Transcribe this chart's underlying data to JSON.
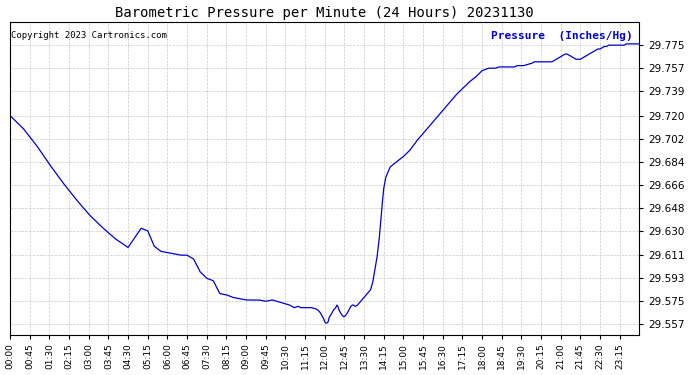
{
  "title": "Barometric Pressure per Minute (24 Hours) 20231130",
  "copyright_text": "Copyright 2023 Cartronics.com",
  "legend_label": "Pressure  (Inches/Hg)",
  "line_color": "#0000cc",
  "bg_color": "#ffffff",
  "grid_color": "#bbbbbb",
  "title_color": "#000000",
  "copyright_color": "#000000",
  "legend_color": "#0000cc",
  "ylim": [
    29.549,
    29.793
  ],
  "yticks": [
    29.557,
    29.575,
    29.593,
    29.611,
    29.63,
    29.648,
    29.666,
    29.684,
    29.702,
    29.72,
    29.739,
    29.757,
    29.775
  ],
  "xtick_labels": [
    "00:00",
    "00:45",
    "01:30",
    "02:15",
    "03:00",
    "03:45",
    "04:30",
    "05:15",
    "06:00",
    "06:45",
    "07:30",
    "08:15",
    "09:00",
    "09:45",
    "10:30",
    "11:15",
    "12:00",
    "12:45",
    "13:30",
    "14:15",
    "15:00",
    "15:45",
    "16:30",
    "17:15",
    "18:00",
    "18:45",
    "19:30",
    "20:15",
    "21:00",
    "21:45",
    "22:30",
    "23:15"
  ],
  "keypoints": [
    [
      0,
      29.72
    ],
    [
      30,
      29.71
    ],
    [
      60,
      29.697
    ],
    [
      90,
      29.682
    ],
    [
      120,
      29.668
    ],
    [
      150,
      29.655
    ],
    [
      180,
      29.643
    ],
    [
      210,
      29.633
    ],
    [
      240,
      29.624
    ],
    [
      270,
      29.617
    ],
    [
      300,
      29.632
    ],
    [
      315,
      29.63
    ],
    [
      330,
      29.618
    ],
    [
      345,
      29.614
    ],
    [
      360,
      29.613
    ],
    [
      390,
      29.611
    ],
    [
      405,
      29.611
    ],
    [
      420,
      29.608
    ],
    [
      435,
      29.598
    ],
    [
      450,
      29.593
    ],
    [
      465,
      29.591
    ],
    [
      480,
      29.581
    ],
    [
      495,
      29.58
    ],
    [
      510,
      29.578
    ],
    [
      525,
      29.577
    ],
    [
      540,
      29.576
    ],
    [
      555,
      29.576
    ],
    [
      570,
      29.576
    ],
    [
      585,
      29.575
    ],
    [
      600,
      29.576
    ],
    [
      610,
      29.575
    ],
    [
      620,
      29.574
    ],
    [
      630,
      29.573
    ],
    [
      640,
      29.572
    ],
    [
      645,
      29.571
    ],
    [
      650,
      29.57
    ],
    [
      660,
      29.571
    ],
    [
      665,
      29.57
    ],
    [
      670,
      29.57
    ],
    [
      680,
      29.57
    ],
    [
      690,
      29.57
    ],
    [
      700,
      29.569
    ],
    [
      705,
      29.568
    ],
    [
      710,
      29.566
    ],
    [
      715,
      29.563
    ],
    [
      718,
      29.561
    ],
    [
      720,
      29.559
    ],
    [
      722,
      29.558
    ],
    [
      725,
      29.558
    ],
    [
      728,
      29.559
    ],
    [
      730,
      29.562
    ],
    [
      735,
      29.565
    ],
    [
      740,
      29.568
    ],
    [
      745,
      29.57
    ],
    [
      748,
      29.572
    ],
    [
      750,
      29.571
    ],
    [
      753,
      29.568
    ],
    [
      756,
      29.566
    ],
    [
      760,
      29.564
    ],
    [
      763,
      29.563
    ],
    [
      765,
      29.563
    ],
    [
      768,
      29.564
    ],
    [
      772,
      29.566
    ],
    [
      775,
      29.568
    ],
    [
      778,
      29.57
    ],
    [
      780,
      29.571
    ],
    [
      783,
      29.572
    ],
    [
      786,
      29.572
    ],
    [
      790,
      29.571
    ],
    [
      795,
      29.572
    ],
    [
      800,
      29.574
    ],
    [
      805,
      29.576
    ],
    [
      810,
      29.578
    ],
    [
      815,
      29.58
    ],
    [
      820,
      29.582
    ],
    [
      825,
      29.584
    ],
    [
      830,
      29.59
    ],
    [
      840,
      29.61
    ],
    [
      845,
      29.625
    ],
    [
      850,
      29.645
    ],
    [
      855,
      29.663
    ],
    [
      860,
      29.672
    ],
    [
      870,
      29.68
    ],
    [
      885,
      29.684
    ],
    [
      900,
      29.688
    ],
    [
      915,
      29.693
    ],
    [
      930,
      29.7
    ],
    [
      945,
      29.706
    ],
    [
      960,
      29.712
    ],
    [
      975,
      29.718
    ],
    [
      990,
      29.724
    ],
    [
      1005,
      29.73
    ],
    [
      1020,
      29.736
    ],
    [
      1035,
      29.741
    ],
    [
      1050,
      29.746
    ],
    [
      1065,
      29.75
    ],
    [
      1080,
      29.755
    ],
    [
      1095,
      29.757
    ],
    [
      1100,
      29.757
    ],
    [
      1110,
      29.757
    ],
    [
      1120,
      29.758
    ],
    [
      1125,
      29.758
    ],
    [
      1130,
      29.758
    ],
    [
      1135,
      29.758
    ],
    [
      1140,
      29.758
    ],
    [
      1145,
      29.758
    ],
    [
      1155,
      29.758
    ],
    [
      1160,
      29.759
    ],
    [
      1165,
      29.759
    ],
    [
      1170,
      29.759
    ],
    [
      1175,
      29.759
    ],
    [
      1185,
      29.76
    ],
    [
      1195,
      29.761
    ],
    [
      1200,
      29.762
    ],
    [
      1205,
      29.762
    ],
    [
      1210,
      29.762
    ],
    [
      1215,
      29.762
    ],
    [
      1220,
      29.762
    ],
    [
      1230,
      29.762
    ],
    [
      1240,
      29.762
    ],
    [
      1245,
      29.763
    ],
    [
      1250,
      29.764
    ],
    [
      1255,
      29.765
    ],
    [
      1260,
      29.766
    ],
    [
      1265,
      29.767
    ],
    [
      1270,
      29.768
    ],
    [
      1275,
      29.768
    ],
    [
      1280,
      29.767
    ],
    [
      1285,
      29.766
    ],
    [
      1290,
      29.765
    ],
    [
      1295,
      29.764
    ],
    [
      1300,
      29.764
    ],
    [
      1305,
      29.764
    ],
    [
      1310,
      29.765
    ],
    [
      1315,
      29.766
    ],
    [
      1320,
      29.767
    ],
    [
      1325,
      29.768
    ],
    [
      1330,
      29.769
    ],
    [
      1335,
      29.77
    ],
    [
      1340,
      29.771
    ],
    [
      1345,
      29.772
    ],
    [
      1350,
      29.772
    ],
    [
      1355,
      29.773
    ],
    [
      1360,
      29.774
    ],
    [
      1365,
      29.774
    ],
    [
      1370,
      29.775
    ],
    [
      1375,
      29.775
    ],
    [
      1380,
      29.775
    ],
    [
      1385,
      29.775
    ],
    [
      1390,
      29.775
    ],
    [
      1395,
      29.775
    ],
    [
      1400,
      29.775
    ],
    [
      1405,
      29.775
    ],
    [
      1410,
      29.776
    ],
    [
      1415,
      29.776
    ],
    [
      1420,
      29.776
    ],
    [
      1425,
      29.776
    ],
    [
      1430,
      29.776
    ],
    [
      1435,
      29.776
    ],
    [
      1439,
      29.776
    ]
  ]
}
